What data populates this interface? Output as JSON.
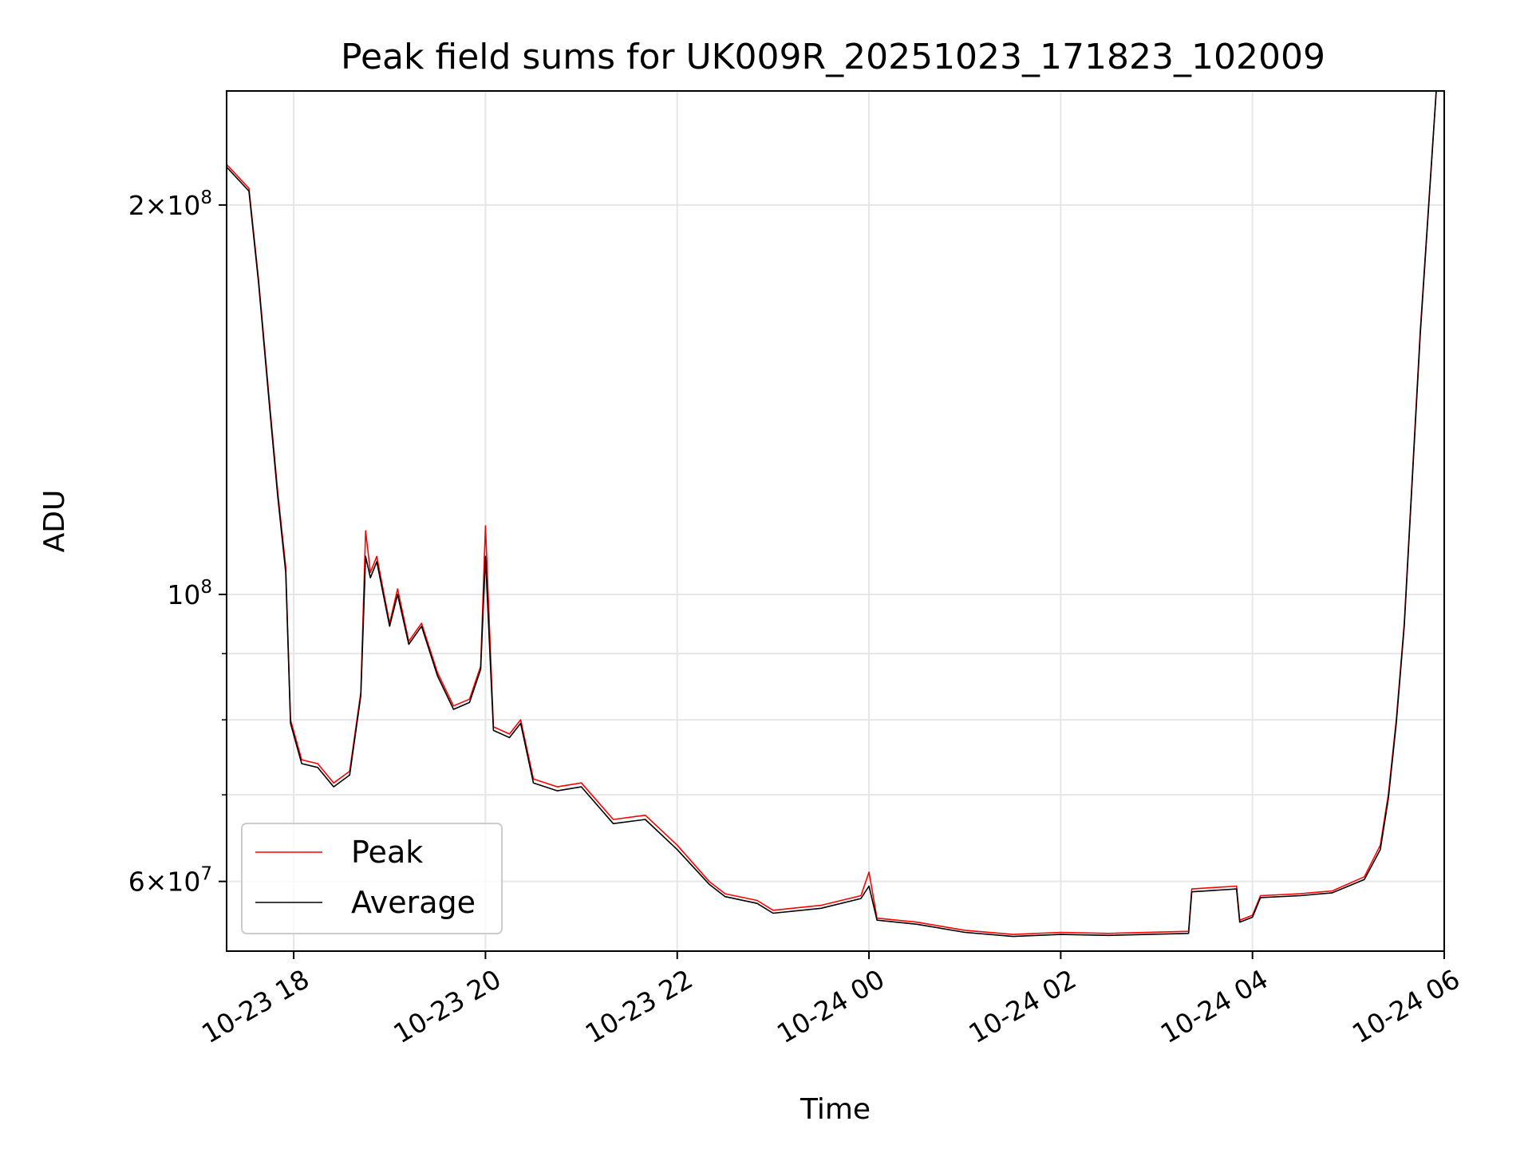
{
  "chart_data": {
    "type": "line",
    "title": "Peak field sums for UK009R_20251023_171823_102009",
    "xlabel": "Time",
    "ylabel": "ADU",
    "yscale": "log",
    "grid": true,
    "legend_position": "lower-left",
    "xlim": [
      "2025-10-23 17:18",
      "2025-10-24 06:00"
    ],
    "ylim": [
      53000000,
      245000000
    ],
    "x_ticks": [
      {
        "value": "2025-10-23 18:00",
        "label": "10-23 18"
      },
      {
        "value": "2025-10-23 20:00",
        "label": "10-23 20"
      },
      {
        "value": "2025-10-23 22:00",
        "label": "10-23 22"
      },
      {
        "value": "2025-10-24 00:00",
        "label": "10-24 00"
      },
      {
        "value": "2025-10-24 02:00",
        "label": "10-24 02"
      },
      {
        "value": "2025-10-24 04:00",
        "label": "10-24 04"
      },
      {
        "value": "2025-10-24 06:00",
        "label": "10-24 06"
      }
    ],
    "y_major_ticks": [
      {
        "value": 60000000,
        "mantissa": "6",
        "exp": "7"
      },
      {
        "value": 100000000,
        "mantissa": "",
        "exp": "8"
      },
      {
        "value": 200000000,
        "mantissa": "2",
        "exp": "8"
      }
    ],
    "y_minor_ticks": [
      70000000,
      80000000,
      90000000
    ],
    "series": [
      {
        "name": "Peak",
        "color": "#ff0000",
        "points": [
          [
            "2025-10-23 17:18",
            215000000
          ],
          [
            "2025-10-23 17:32",
            206000000
          ],
          [
            "2025-10-23 17:38",
            175000000
          ],
          [
            "2025-10-23 17:45",
            140000000
          ],
          [
            "2025-10-23 17:50",
            120000000
          ],
          [
            "2025-10-23 17:55",
            105000000
          ],
          [
            "2025-10-23 17:58",
            80000000
          ],
          [
            "2025-10-23 18:05",
            74500000
          ],
          [
            "2025-10-23 18:15",
            74000000
          ],
          [
            "2025-10-23 18:25",
            71500000
          ],
          [
            "2025-10-23 18:35",
            73000000
          ],
          [
            "2025-10-23 18:42",
            84000000
          ],
          [
            "2025-10-23 18:45",
            112000000
          ],
          [
            "2025-10-23 18:48",
            104000000
          ],
          [
            "2025-10-23 18:52",
            107000000
          ],
          [
            "2025-10-23 19:00",
            95000000
          ],
          [
            "2025-10-23 19:05",
            101000000
          ],
          [
            "2025-10-23 19:12",
            92000000
          ],
          [
            "2025-10-23 19:20",
            95000000
          ],
          [
            "2025-10-23 19:30",
            87000000
          ],
          [
            "2025-10-23 19:40",
            82000000
          ],
          [
            "2025-10-23 19:50",
            83000000
          ],
          [
            "2025-10-23 19:57",
            88000000
          ],
          [
            "2025-10-23 20:00",
            113000000
          ],
          [
            "2025-10-23 20:05",
            79000000
          ],
          [
            "2025-10-23 20:15",
            78000000
          ],
          [
            "2025-10-23 20:22",
            80000000
          ],
          [
            "2025-10-23 20:30",
            72000000
          ],
          [
            "2025-10-23 20:45",
            71000000
          ],
          [
            "2025-10-23 21:00",
            71500000
          ],
          [
            "2025-10-23 21:20",
            67000000
          ],
          [
            "2025-10-23 21:40",
            67500000
          ],
          [
            "2025-10-23 22:00",
            64000000
          ],
          [
            "2025-10-23 22:20",
            60000000
          ],
          [
            "2025-10-23 22:30",
            58700000
          ],
          [
            "2025-10-23 22:50",
            58000000
          ],
          [
            "2025-10-23 23:00",
            57000000
          ],
          [
            "2025-10-23 23:30",
            57500000
          ],
          [
            "2025-10-23 23:55",
            58500000
          ],
          [
            "2025-10-24 00:00",
            61000000
          ],
          [
            "2025-10-24 00:05",
            56200000
          ],
          [
            "2025-10-24 00:30",
            55800000
          ],
          [
            "2025-10-24 01:00",
            55000000
          ],
          [
            "2025-10-24 01:30",
            54600000
          ],
          [
            "2025-10-24 02:00",
            54800000
          ],
          [
            "2025-10-24 02:30",
            54700000
          ],
          [
            "2025-10-24 03:20",
            54900000
          ],
          [
            "2025-10-24 03:22",
            59200000
          ],
          [
            "2025-10-24 03:50",
            59500000
          ],
          [
            "2025-10-24 03:52",
            56000000
          ],
          [
            "2025-10-24 04:00",
            56500000
          ],
          [
            "2025-10-24 04:05",
            58500000
          ],
          [
            "2025-10-24 04:30",
            58700000
          ],
          [
            "2025-10-24 04:50",
            59000000
          ],
          [
            "2025-10-24 05:10",
            60500000
          ],
          [
            "2025-10-24 05:20",
            64000000
          ],
          [
            "2025-10-24 05:25",
            70000000
          ],
          [
            "2025-10-24 05:30",
            80000000
          ],
          [
            "2025-10-24 05:35",
            95000000
          ],
          [
            "2025-10-24 05:45",
            160000000
          ],
          [
            "2025-10-24 05:55",
            245000000
          ]
        ]
      },
      {
        "name": "Average",
        "color": "#000000",
        "points": [
          [
            "2025-10-23 17:18",
            214000000
          ],
          [
            "2025-10-23 17:32",
            205000000
          ],
          [
            "2025-10-23 17:38",
            174000000
          ],
          [
            "2025-10-23 17:45",
            139000000
          ],
          [
            "2025-10-23 17:50",
            119000000
          ],
          [
            "2025-10-23 17:55",
            104000000
          ],
          [
            "2025-10-23 17:58",
            79500000
          ],
          [
            "2025-10-23 18:05",
            74000000
          ],
          [
            "2025-10-23 18:15",
            73500000
          ],
          [
            "2025-10-23 18:25",
            71000000
          ],
          [
            "2025-10-23 18:35",
            72500000
          ],
          [
            "2025-10-23 18:42",
            83500000
          ],
          [
            "2025-10-23 18:45",
            107000000
          ],
          [
            "2025-10-23 18:48",
            103000000
          ],
          [
            "2025-10-23 18:52",
            106000000
          ],
          [
            "2025-10-23 19:00",
            94500000
          ],
          [
            "2025-10-23 19:05",
            100000000
          ],
          [
            "2025-10-23 19:12",
            91500000
          ],
          [
            "2025-10-23 19:20",
            94500000
          ],
          [
            "2025-10-23 19:30",
            86500000
          ],
          [
            "2025-10-23 19:40",
            81500000
          ],
          [
            "2025-10-23 19:50",
            82500000
          ],
          [
            "2025-10-23 19:57",
            87500000
          ],
          [
            "2025-10-23 20:00",
            107000000
          ],
          [
            "2025-10-23 20:05",
            78500000
          ],
          [
            "2025-10-23 20:15",
            77500000
          ],
          [
            "2025-10-23 20:22",
            79500000
          ],
          [
            "2025-10-23 20:30",
            71500000
          ],
          [
            "2025-10-23 20:45",
            70500000
          ],
          [
            "2025-10-23 21:00",
            71000000
          ],
          [
            "2025-10-23 21:20",
            66500000
          ],
          [
            "2025-10-23 21:40",
            67000000
          ],
          [
            "2025-10-23 22:00",
            63500000
          ],
          [
            "2025-10-23 22:20",
            59700000
          ],
          [
            "2025-10-23 22:30",
            58400000
          ],
          [
            "2025-10-23 22:50",
            57700000
          ],
          [
            "2025-10-23 23:00",
            56700000
          ],
          [
            "2025-10-23 23:30",
            57200000
          ],
          [
            "2025-10-23 23:55",
            58200000
          ],
          [
            "2025-10-24 00:00",
            59500000
          ],
          [
            "2025-10-24 00:05",
            56000000
          ],
          [
            "2025-10-24 00:30",
            55600000
          ],
          [
            "2025-10-24 01:00",
            54800000
          ],
          [
            "2025-10-24 01:30",
            54400000
          ],
          [
            "2025-10-24 02:00",
            54600000
          ],
          [
            "2025-10-24 02:30",
            54500000
          ],
          [
            "2025-10-24 03:20",
            54700000
          ],
          [
            "2025-10-24 03:22",
            58900000
          ],
          [
            "2025-10-24 03:50",
            59200000
          ],
          [
            "2025-10-24 03:52",
            55800000
          ],
          [
            "2025-10-24 04:00",
            56300000
          ],
          [
            "2025-10-24 04:05",
            58300000
          ],
          [
            "2025-10-24 04:30",
            58500000
          ],
          [
            "2025-10-24 04:50",
            58800000
          ],
          [
            "2025-10-24 05:10",
            60200000
          ],
          [
            "2025-10-24 05:20",
            63500000
          ],
          [
            "2025-10-24 05:25",
            69500000
          ],
          [
            "2025-10-24 05:30",
            79500000
          ],
          [
            "2025-10-24 05:35",
            94500000
          ],
          [
            "2025-10-24 05:45",
            159000000
          ],
          [
            "2025-10-24 05:55",
            245000000
          ]
        ]
      }
    ]
  }
}
